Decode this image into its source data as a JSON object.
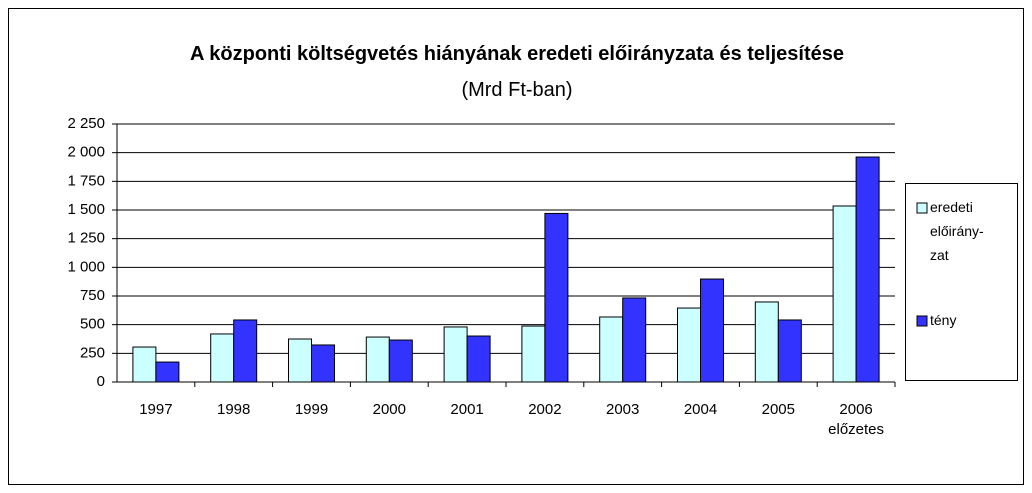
{
  "chart_data": {
    "type": "bar",
    "title": "A központi költségvetés hiányának eredeti előirányzata és teljesítése",
    "subtitle": "(Mrd Ft-ban)",
    "categories": [
      "1997",
      "1998",
      "1999",
      "2000",
      "2001",
      "2002",
      "2003",
      "2004",
      "2005",
      "2006 előzetes"
    ],
    "series": [
      {
        "name": "eredeti előirány-zat",
        "color": "#ccffff",
        "values": [
          305,
          419,
          375,
          392,
          480,
          488,
          567,
          645,
          698,
          1535
        ]
      },
      {
        "name": "tény",
        "color": "#3333ff",
        "values": [
          174,
          541,
          323,
          366,
          401,
          1470,
          733,
          898,
          541,
          1962
        ]
      }
    ],
    "ylim": [
      0,
      2250
    ],
    "yticks": [
      0,
      250,
      500,
      750,
      {
        "value": 1000,
        "label": "1 000"
      },
      {
        "value": 1250,
        "label": "1 250"
      },
      {
        "value": 1500,
        "label": "1 500"
      },
      {
        "value": 1750,
        "label": "1 750"
      },
      {
        "value": 2000,
        "label": "2 000"
      },
      {
        "value": 2250,
        "label": "2 250"
      }
    ],
    "grid": true,
    "legend": "right"
  }
}
